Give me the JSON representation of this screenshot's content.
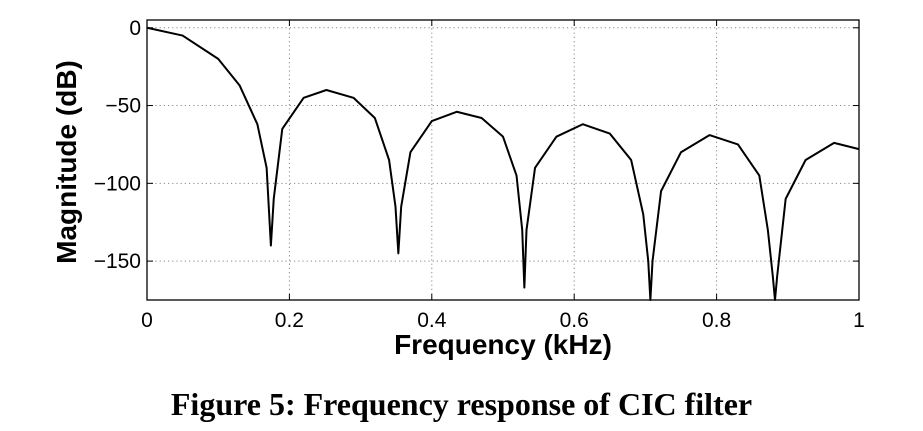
{
  "caption": "Figure 5: Frequency response of CIC filter",
  "chart_data": {
    "type": "line",
    "title": "",
    "xlabel": "Frequency (kHz)",
    "ylabel": "Magnitude (dB)",
    "xlim": [
      0,
      1
    ],
    "ylim": [
      -175,
      5
    ],
    "xticks": [
      0,
      0.2,
      0.4,
      0.6,
      0.8,
      1
    ],
    "xtick_labels": [
      "0",
      "0.2",
      "0.4",
      "0.6",
      "0.8",
      "1"
    ],
    "yticks": [
      0,
      -50,
      -100,
      -150
    ],
    "ytick_labels": [
      "0",
      "−50",
      "−100",
      "−150"
    ],
    "grid": true,
    "grid_style": "dotted",
    "line_color": "#000000",
    "series": [
      {
        "x": [
          0,
          0.05,
          0.1,
          0.13,
          0.155,
          0.168,
          0.174,
          0.178,
          0.19,
          0.22,
          0.252,
          0.29,
          0.32,
          0.34,
          0.349,
          0.353,
          0.357,
          0.37,
          0.4,
          0.435,
          0.47,
          0.5,
          0.519,
          0.527,
          0.53,
          0.533,
          0.545,
          0.575,
          0.612,
          0.65,
          0.68,
          0.697,
          0.704,
          0.707,
          0.71,
          0.722,
          0.75,
          0.79,
          0.83,
          0.86,
          0.872,
          0.879,
          0.882,
          0.885,
          0.897,
          0.925,
          0.965,
          1.0
        ],
        "y": [
          0,
          -5,
          -20,
          -37,
          -62,
          -90,
          -140,
          -110,
          -65,
          -45,
          -40,
          -45,
          -58,
          -85,
          -115,
          -145,
          -115,
          -80,
          -60,
          -54,
          -58,
          -70,
          -95,
          -130,
          -167,
          -130,
          -90,
          -70,
          -62,
          -68,
          -85,
          -120,
          -150,
          -175,
          -150,
          -105,
          -80,
          -69,
          -75,
          -95,
          -130,
          -160,
          -175,
          -160,
          -110,
          -85,
          -74,
          -78
        ]
      }
    ]
  }
}
